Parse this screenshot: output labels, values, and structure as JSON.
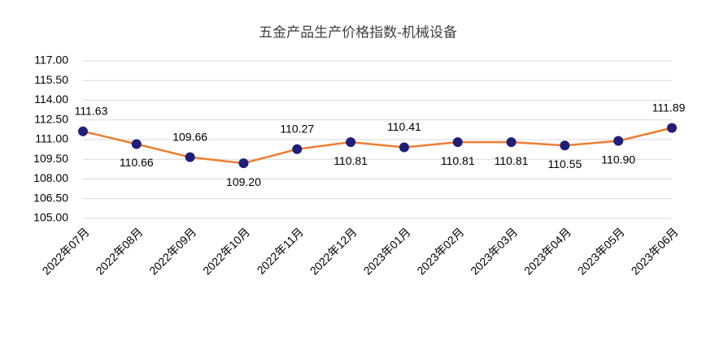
{
  "chart_data": {
    "type": "line",
    "title": "五金产品生产价格指数-机械设备",
    "categories": [
      "2022年07月",
      "2022年08月",
      "2022年09月",
      "2022年10月",
      "2022年11月",
      "2022年12月",
      "2023年01月",
      "2023年02月",
      "2023年03月",
      "2023年04月",
      "2023年05月",
      "2023年06月"
    ],
    "series": [
      {
        "name": "机械设备",
        "color": "#ed7d31",
        "marker_color": "#1f1f7a",
        "values": [
          111.63,
          110.66,
          109.66,
          109.2,
          110.27,
          110.81,
          110.41,
          110.81,
          110.81,
          110.55,
          110.9,
          111.89
        ],
        "value_labels": [
          "111.63",
          "110.66",
          "109.66",
          "109.20",
          "110.27",
          "110.81",
          "110.41",
          "110.81",
          "110.81",
          "110.55",
          "110.90",
          "111.89"
        ]
      }
    ],
    "ylim": [
      105,
      117
    ],
    "yticks": [
      {
        "value": 105,
        "label": "105.00"
      },
      {
        "value": 106.5,
        "label": "106.50"
      },
      {
        "value": 108,
        "label": "108.00"
      },
      {
        "value": 109.5,
        "label": "109.50"
      },
      {
        "value": 111,
        "label": "111.00"
      },
      {
        "value": 112.5,
        "label": "112.50"
      },
      {
        "value": 114,
        "label": "114.00"
      },
      {
        "value": 115.5,
        "label": "115.50"
      },
      {
        "value": 117,
        "label": "117.00"
      }
    ],
    "grid": true
  }
}
